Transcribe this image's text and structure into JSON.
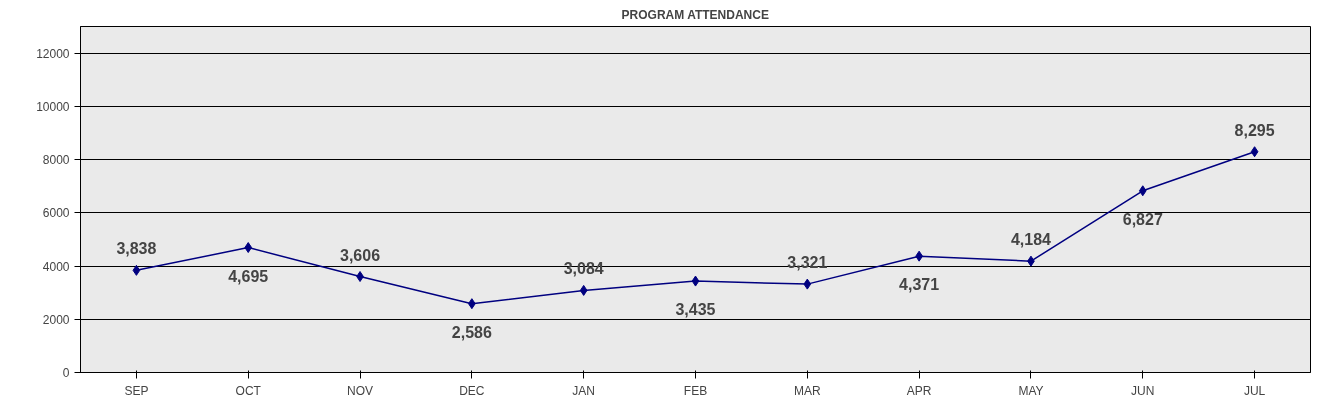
{
  "chart_data": {
    "type": "line",
    "title": "PROGRAM ATTENDANCE",
    "categories": [
      "SEP",
      "OCT",
      "NOV",
      "DEC",
      "JAN",
      "FEB",
      "MAR",
      "APR",
      "MAY",
      "JUN",
      "JUL"
    ],
    "values": [
      3838,
      4695,
      3606,
      2586,
      3084,
      3435,
      3321,
      4371,
      4184,
      6827,
      8295
    ],
    "value_labels": [
      "3,838",
      "4,695",
      "3,606",
      "2,586",
      "3,084",
      "3,435",
      "3,321",
      "4,371",
      "4,184",
      "6,827",
      "8,295"
    ],
    "color": "#000080",
    "marker": "diamond",
    "grid": "y",
    "ylim": [
      0,
      13000
    ],
    "yticks": [
      0,
      2000,
      4000,
      6000,
      8000,
      10000,
      12000
    ]
  }
}
